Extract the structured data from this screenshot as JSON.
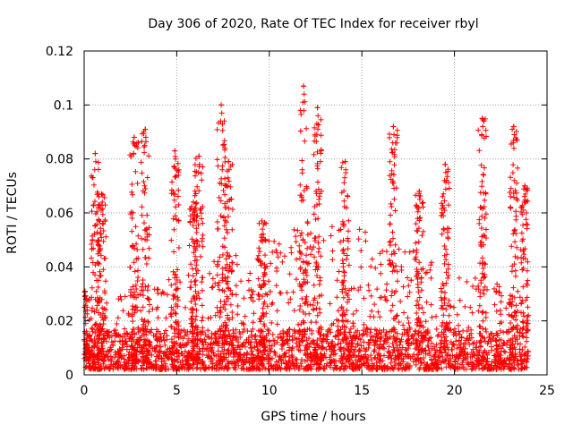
{
  "chart_data": {
    "type": "scatter",
    "title": "Day 306 of 2020, Rate Of TEC Index for receiver rbyl",
    "xlabel": "GPS time / hours",
    "ylabel": "ROTI / TECUs",
    "xlim": [
      0,
      25
    ],
    "ylim": [
      0,
      0.12
    ],
    "xticks": [
      0,
      5,
      10,
      15,
      20,
      25
    ],
    "yticks": [
      0,
      0.02,
      0.04,
      0.06,
      0.08,
      0.1,
      0.12
    ],
    "xtick_labels": [
      "0",
      "5",
      "10",
      "15",
      "20",
      "25"
    ],
    "ytick_labels": [
      "0",
      "0.02",
      "0.04",
      "0.06",
      "0.08",
      "0.1",
      "0.12"
    ],
    "grid": true,
    "legend": "none",
    "marker": "plus",
    "marker_color": "#ff0000",
    "series": [
      {
        "name": "ROTI",
        "spikes": [
          {
            "hour": 0.05,
            "peak": 0.031
          },
          {
            "hour": 0.6,
            "peak": 0.082
          },
          {
            "hour": 0.95,
            "peak": 0.067
          },
          {
            "hour": 2.7,
            "peak": 0.088
          },
          {
            "hour": 3.3,
            "peak": 0.091
          },
          {
            "hour": 4.9,
            "peak": 0.083
          },
          {
            "hour": 5.9,
            "peak": 0.064
          },
          {
            "hour": 6.2,
            "peak": 0.081
          },
          {
            "hour": 7.4,
            "peak": 0.1
          },
          {
            "hour": 7.8,
            "peak": 0.079
          },
          {
            "hour": 9.6,
            "peak": 0.057
          },
          {
            "hour": 11.85,
            "peak": 0.107
          },
          {
            "hour": 12.6,
            "peak": 0.099
          },
          {
            "hour": 14.1,
            "peak": 0.079
          },
          {
            "hour": 16.7,
            "peak": 0.092
          },
          {
            "hour": 18.1,
            "peak": 0.068
          },
          {
            "hour": 19.5,
            "peak": 0.078
          },
          {
            "hour": 21.5,
            "peak": 0.095
          },
          {
            "hour": 23.2,
            "peak": 0.092
          },
          {
            "hour": 23.8,
            "peak": 0.07
          }
        ],
        "background": {
          "range_hours": [
            0,
            24
          ],
          "dense_level": 0.015,
          "moderate_level": 0.035
        }
      }
    ]
  }
}
